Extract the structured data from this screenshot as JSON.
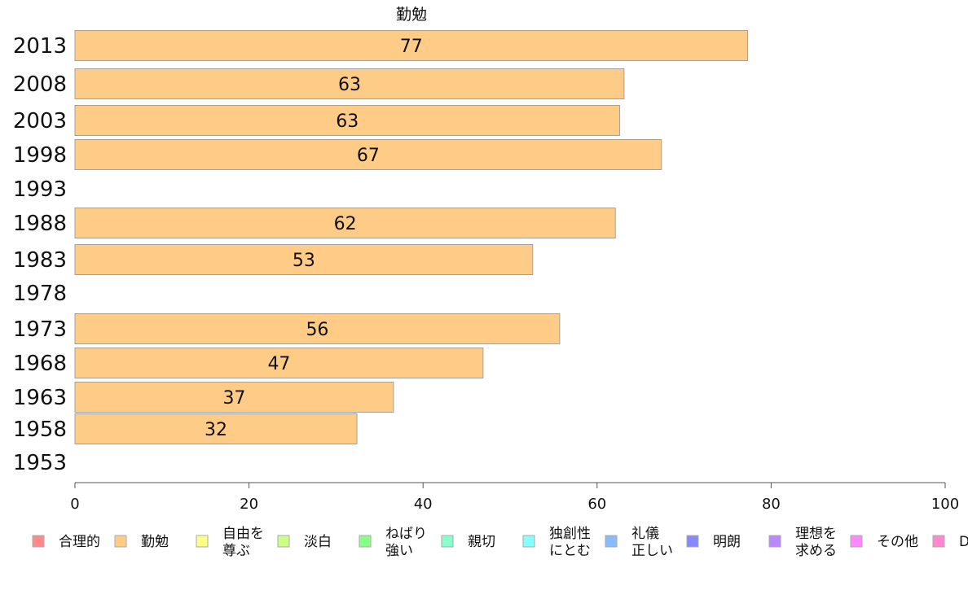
{
  "chart_data": {
    "type": "bar",
    "orientation": "horizontal",
    "title": "勤勉",
    "xlabel": "",
    "ylabel": "",
    "xlim": [
      0,
      100
    ],
    "x_ticks": [
      "0",
      "20",
      "40",
      "60",
      "80",
      "100"
    ],
    "categories": [
      "2013",
      "2008",
      "2003",
      "1998",
      "1993",
      "1988",
      "1983",
      "1978",
      "1973",
      "1968",
      "1963",
      "1958",
      "1953"
    ],
    "values": [
      77,
      63,
      63,
      67,
      null,
      62,
      53,
      null,
      56,
      47,
      37,
      32,
      null
    ],
    "precise_values": [
      77.3,
      63.1,
      62.6,
      67.4,
      null,
      62.1,
      52.6,
      null,
      55.7,
      46.9,
      36.6,
      32.4,
      null
    ],
    "value_labels": [
      "77",
      "63",
      "63",
      "67",
      "",
      "62",
      "53",
      "",
      "56",
      "47",
      "37",
      "32",
      ""
    ],
    "series_color": "#ffcc88",
    "grid": false,
    "legend_position": "bottom",
    "legend": [
      {
        "label": "合理的",
        "color": "#ff8888"
      },
      {
        "label": "勤勉",
        "color": "#ffcc88"
      },
      {
        "label": "自由を\n尊ぶ",
        "color": "#ffff88"
      },
      {
        "label": "淡白",
        "color": "#ccff88"
      },
      {
        "label": "ねばり\n強い",
        "color": "#88ff88"
      },
      {
        "label": "親切",
        "color": "#88ffcc"
      },
      {
        "label": "独創性\nにとむ",
        "color": "#88ffff"
      },
      {
        "label": "礼儀\n正しい",
        "color": "#88bbff"
      },
      {
        "label": "明朗",
        "color": "#8888ff"
      },
      {
        "label": "理想を\n求める",
        "color": "#bb88ff"
      },
      {
        "label": "その他",
        "color": "#ff88ff"
      },
      {
        "label": "D",
        "color": "#ff88cc"
      }
    ]
  }
}
